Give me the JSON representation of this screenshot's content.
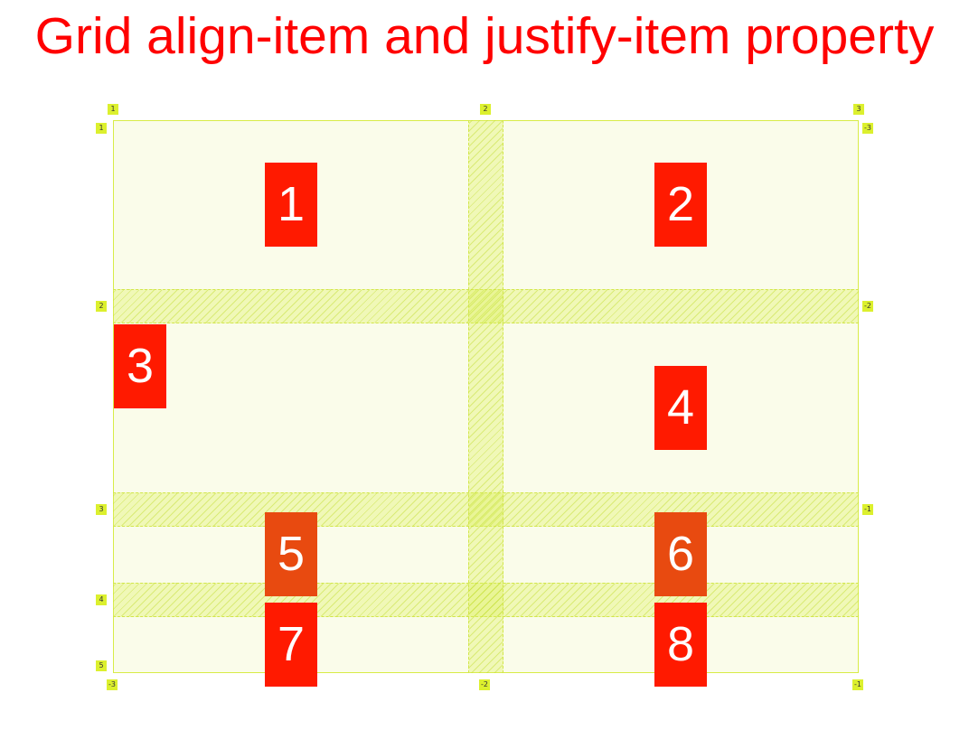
{
  "page": {
    "title": "Grid align-item and justify-item property"
  },
  "colors": {
    "title": "#ff0000",
    "item": "#ff1a00",
    "grid_background": "#fafcea",
    "grid_border": "#d8ec47",
    "badge": "#dcf02e"
  },
  "grid": {
    "items": [
      "1",
      "2",
      "3",
      "4",
      "5",
      "6",
      "7",
      "8"
    ],
    "top_column_lines": [
      "1",
      "2",
      "3"
    ],
    "bottom_column_lines": [
      "-3",
      "-2",
      "-1"
    ],
    "left_row_lines": [
      "1",
      "2",
      "3",
      "4",
      "5"
    ],
    "right_row_lines": [
      "-3",
      "-2",
      "-1"
    ]
  }
}
